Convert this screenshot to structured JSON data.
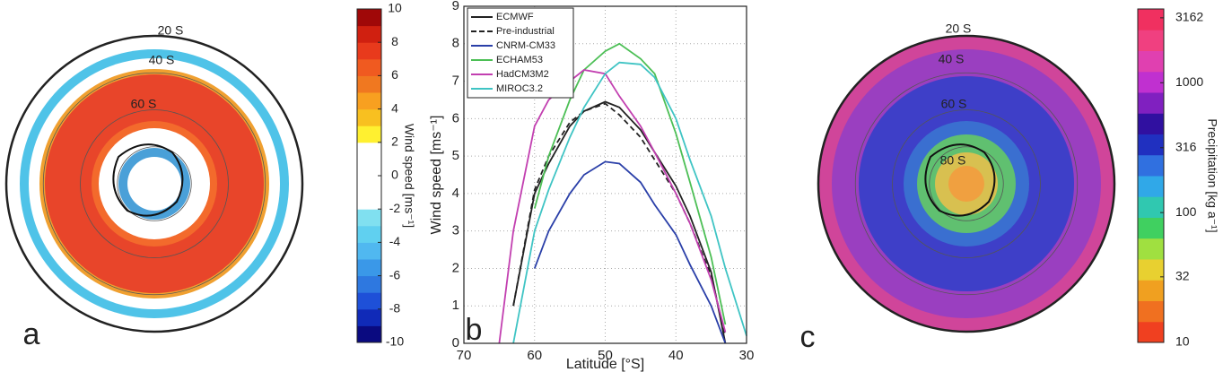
{
  "chart_data": [
    {
      "type": "map",
      "panel": "a",
      "latitude_labels": [
        "20 S",
        "40 S",
        "60 S"
      ],
      "colorbar_label": "Wind speed [ms⁻¹]",
      "clim": [
        -10,
        10
      ],
      "cticks": [
        10,
        8,
        6,
        4,
        2,
        0,
        -2,
        -4,
        -6,
        -8,
        -10
      ]
    },
    {
      "type": "line",
      "panel": "b",
      "xlabel": "Latitude [°S]",
      "ylabel": "Wind speed [ms⁻¹]",
      "xlim": [
        70,
        30
      ],
      "ylim": [
        0,
        9
      ],
      "xticks": [
        70,
        60,
        50,
        40,
        30
      ],
      "yticks": [
        0,
        1,
        2,
        3,
        4,
        5,
        6,
        7,
        8,
        9
      ],
      "grid": true,
      "legend": "upper left",
      "x": [
        65,
        63,
        60,
        58,
        55,
        53,
        50,
        48,
        45,
        43,
        40,
        38,
        35,
        33,
        30
      ],
      "series": [
        {
          "name": "ECMWF",
          "color": "#222222",
          "linestyle": "solid",
          "values": [
            null,
            1.0,
            4.0,
            4.8,
            5.8,
            6.2,
            6.45,
            6.3,
            5.7,
            5.1,
            4.2,
            3.4,
            1.9,
            0,
            null
          ]
        },
        {
          "name": "Pre-industrial",
          "color": "#222222",
          "linestyle": "dashed",
          "values": [
            null,
            1.0,
            4.1,
            5.0,
            5.9,
            6.2,
            6.4,
            6.1,
            5.5,
            4.9,
            4.0,
            3.2,
            1.8,
            0.2,
            null
          ]
        },
        {
          "name": "CNRM-CM33",
          "color": "#2a3fa8",
          "linestyle": "solid",
          "values": [
            null,
            null,
            2.0,
            3.0,
            4.0,
            4.5,
            4.85,
            4.8,
            4.3,
            3.7,
            2.9,
            2.1,
            1.0,
            0,
            null
          ]
        },
        {
          "name": "ECHAM53",
          "color": "#4cbf55",
          "linestyle": "solid",
          "values": [
            null,
            null,
            3.6,
            5.0,
            6.5,
            7.3,
            7.8,
            8.0,
            7.6,
            7.2,
            5.6,
            4.3,
            2.3,
            0.5,
            null
          ]
        },
        {
          "name": "HadCM3M2",
          "color": "#c23fb0",
          "linestyle": "solid",
          "values": [
            0,
            3.0,
            5.8,
            6.5,
            7.0,
            7.3,
            7.2,
            6.6,
            5.8,
            5.1,
            4.0,
            3.2,
            1.7,
            0.3,
            null
          ]
        },
        {
          "name": "MIROC3.2",
          "color": "#3fc4c4",
          "linestyle": "solid",
          "values": [
            null,
            0,
            3.0,
            4.1,
            5.5,
            6.3,
            7.2,
            7.5,
            7.45,
            7.1,
            6.0,
            4.9,
            3.4,
            2.0,
            0.2
          ]
        }
      ]
    },
    {
      "type": "map",
      "panel": "c",
      "latitude_labels": [
        "20 S",
        "40 S",
        "60 S",
        "80 S"
      ],
      "colorbar_label": "Precipitation [kg a⁻¹]",
      "log_scale": true,
      "clim": [
        10,
        3700
      ],
      "cticks": [
        3162,
        1000,
        316,
        100,
        32,
        10
      ]
    }
  ]
}
